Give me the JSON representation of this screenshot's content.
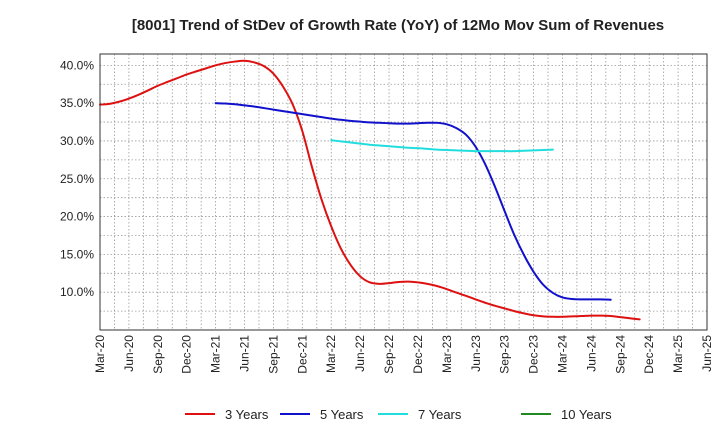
{
  "chart_data": {
    "type": "line",
    "title": "[8001]  Trend of StDev of Growth Rate (YoY) of 12Mo Mov Sum of Revenues",
    "xlabel": "",
    "ylabel": "",
    "ylim": [
      5.0,
      41.5
    ],
    "grid": true,
    "legend_position": "bottom",
    "x_ticks": [
      "Mar-20",
      "Jun-20",
      "Sep-20",
      "Dec-20",
      "Mar-21",
      "Jun-21",
      "Sep-21",
      "Dec-21",
      "Mar-22",
      "Jun-22",
      "Sep-22",
      "Dec-22",
      "Mar-23",
      "Jun-23",
      "Sep-23",
      "Dec-23",
      "Mar-24",
      "Jun-24",
      "Sep-24",
      "Dec-24",
      "Mar-25",
      "Jun-25"
    ],
    "y_ticks": [
      {
        "value": 10,
        "label": "10.0%"
      },
      {
        "value": 15,
        "label": "15.0%"
      },
      {
        "value": 20,
        "label": "20.0%"
      },
      {
        "value": 25,
        "label": "25.0%"
      },
      {
        "value": 30,
        "label": "30.0%"
      },
      {
        "value": 35,
        "label": "35.0%"
      },
      {
        "value": 40,
        "label": "40.0%"
      }
    ],
    "series": [
      {
        "name": "3 Years",
        "color": "#dd1111",
        "points": [
          [
            0,
            34.8
          ],
          [
            0.33,
            34.9
          ],
          [
            0.67,
            35.2
          ],
          [
            1,
            35.6
          ],
          [
            1.33,
            36.1
          ],
          [
            1.67,
            36.7
          ],
          [
            2,
            37.3
          ],
          [
            2.33,
            37.8
          ],
          [
            2.67,
            38.3
          ],
          [
            3,
            38.8
          ],
          [
            3.33,
            39.2
          ],
          [
            3.67,
            39.6
          ],
          [
            4,
            40.0
          ],
          [
            4.33,
            40.3
          ],
          [
            4.67,
            40.5
          ],
          [
            5,
            40.6
          ],
          [
            5.33,
            40.4
          ],
          [
            5.67,
            39.9
          ],
          [
            6,
            38.9
          ],
          [
            6.33,
            37.2
          ],
          [
            6.67,
            34.8
          ],
          [
            7,
            31.3
          ],
          [
            7.33,
            26.6
          ],
          [
            7.67,
            22.2
          ],
          [
            8,
            18.7
          ],
          [
            8.33,
            15.8
          ],
          [
            8.67,
            13.6
          ],
          [
            9,
            12.1
          ],
          [
            9.33,
            11.3
          ],
          [
            9.67,
            11.1
          ],
          [
            10,
            11.2
          ],
          [
            10.33,
            11.35
          ],
          [
            10.67,
            11.4
          ],
          [
            11,
            11.3
          ],
          [
            11.33,
            11.1
          ],
          [
            11.67,
            10.8
          ],
          [
            12,
            10.4
          ],
          [
            12.33,
            9.95
          ],
          [
            12.67,
            9.5
          ],
          [
            13,
            9.05
          ],
          [
            13.33,
            8.6
          ],
          [
            13.67,
            8.2
          ],
          [
            14,
            7.85
          ],
          [
            14.33,
            7.5
          ],
          [
            14.67,
            7.2
          ],
          [
            15,
            6.95
          ],
          [
            15.33,
            6.8
          ],
          [
            15.67,
            6.75
          ],
          [
            16,
            6.75
          ],
          [
            16.33,
            6.8
          ],
          [
            16.67,
            6.85
          ],
          [
            17,
            6.9
          ],
          [
            17.33,
            6.9
          ],
          [
            17.67,
            6.85
          ],
          [
            18,
            6.7
          ],
          [
            18.33,
            6.55
          ],
          [
            18.67,
            6.4
          ]
        ]
      },
      {
        "name": "5 Years",
        "color": "#1111cc",
        "points": [
          [
            4,
            35.0
          ],
          [
            4.33,
            34.95
          ],
          [
            4.67,
            34.85
          ],
          [
            5,
            34.7
          ],
          [
            5.33,
            34.55
          ],
          [
            5.67,
            34.35
          ],
          [
            6,
            34.15
          ],
          [
            6.33,
            33.95
          ],
          [
            6.67,
            33.75
          ],
          [
            7,
            33.55
          ],
          [
            7.33,
            33.35
          ],
          [
            7.67,
            33.15
          ],
          [
            8,
            32.95
          ],
          [
            8.33,
            32.8
          ],
          [
            8.67,
            32.65
          ],
          [
            9,
            32.55
          ],
          [
            9.33,
            32.45
          ],
          [
            9.67,
            32.4
          ],
          [
            10,
            32.35
          ],
          [
            10.33,
            32.3
          ],
          [
            10.67,
            32.3
          ],
          [
            11,
            32.35
          ],
          [
            11.33,
            32.4
          ],
          [
            11.67,
            32.4
          ],
          [
            12,
            32.2
          ],
          [
            12.33,
            31.7
          ],
          [
            12.67,
            30.8
          ],
          [
            13,
            29.2
          ],
          [
            13.33,
            26.9
          ],
          [
            13.67,
            23.9
          ],
          [
            14,
            20.7
          ],
          [
            14.33,
            17.6
          ],
          [
            14.67,
            14.9
          ],
          [
            15,
            12.7
          ],
          [
            15.33,
            11.0
          ],
          [
            15.67,
            9.9
          ],
          [
            16,
            9.3
          ],
          [
            16.33,
            9.1
          ],
          [
            16.67,
            9.05
          ],
          [
            17,
            9.05
          ],
          [
            17.33,
            9.05
          ],
          [
            17.67,
            9.0
          ]
        ]
      },
      {
        "name": "7 Years",
        "color": "#22dddd",
        "points": [
          [
            8,
            30.1
          ],
          [
            8.33,
            29.95
          ],
          [
            8.67,
            29.8
          ],
          [
            9,
            29.65
          ],
          [
            9.33,
            29.5
          ],
          [
            9.67,
            29.4
          ],
          [
            10,
            29.3
          ],
          [
            10.33,
            29.2
          ],
          [
            10.67,
            29.1
          ],
          [
            11,
            29.05
          ],
          [
            11.33,
            28.95
          ],
          [
            11.67,
            28.85
          ],
          [
            12,
            28.8
          ],
          [
            12.33,
            28.75
          ],
          [
            12.67,
            28.7
          ],
          [
            13,
            28.65
          ],
          [
            13.33,
            28.65
          ],
          [
            13.67,
            28.65
          ],
          [
            14,
            28.65
          ],
          [
            14.33,
            28.65
          ],
          [
            14.67,
            28.7
          ],
          [
            15,
            28.75
          ],
          [
            15.33,
            28.8
          ],
          [
            15.67,
            28.85
          ]
        ]
      },
      {
        "name": "10 Years",
        "color": "#228822",
        "points": []
      }
    ]
  }
}
